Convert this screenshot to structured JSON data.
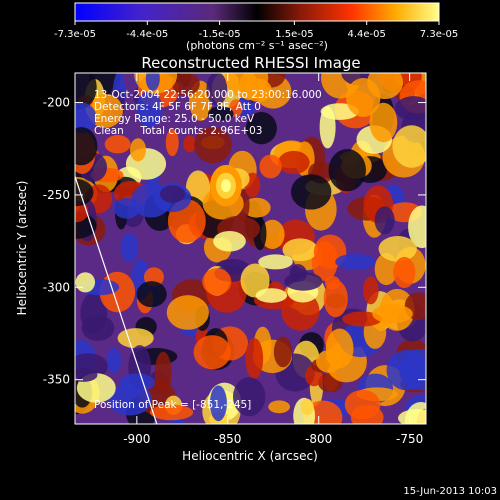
{
  "chart_data": {
    "type": "heatmap",
    "title": "Reconstructed RHESSI Image",
    "xlabel": "Heliocentric X (arcsec)",
    "ylabel": "Heliocentric Y (arcsec)",
    "x_ticks": [
      "-900",
      "-850",
      "-800",
      "-750"
    ],
    "x_tick_values": [
      -900,
      -850,
      -800,
      -750
    ],
    "y_ticks": [
      "-200",
      "-250",
      "-300",
      "-350"
    ],
    "y_tick_values": [
      -200,
      -250,
      -300,
      -350
    ],
    "xlim": [
      -934,
      -741
    ],
    "ylim": [
      -374,
      -184
    ],
    "colorbar": {
      "ticks": [
        "-7.3e-05",
        "-4.4e-05",
        "-1.5e-05",
        "1.5e-05",
        "4.4e-05",
        "7.3e-05"
      ],
      "tick_values": [
        -7.3e-05,
        -4.4e-05,
        -1.5e-05,
        1.5e-05,
        4.4e-05,
        7.3e-05
      ],
      "range": [
        -7.3e-05,
        7.3e-05
      ],
      "unit_label": "(photons cm⁻² s⁻¹ asec⁻²)"
    },
    "annotations": [
      "13-Oct-2004 22:56:20.000 to 23:00:16.000",
      "Detectors: 4F 5F 6F 7F 8F, Att 0",
      "Energy Range: 25.0 - 50.0 keV",
      "Clean     Total counts: 2.96E+03"
    ],
    "peak_label": "Position of Peak = [-851,-245]",
    "peak": [
      -851,
      -245
    ],
    "limb_line": [
      [
        -934,
        -240
      ],
      [
        -889,
        -374
      ]
    ],
    "colors": {
      "background": "#000000",
      "text": "#ffffff",
      "negative_end": "#0000ff",
      "positive_end": "#ffff66"
    }
  },
  "footer": {
    "date": "15-Jun-2013 10:03"
  }
}
